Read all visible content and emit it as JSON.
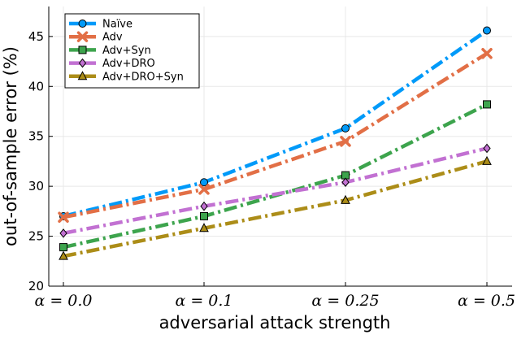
{
  "chart_data": {
    "type": "line",
    "xlabel": "adversarial attack strength",
    "ylabel": "out-of-sample error (%)",
    "categories": [
      "α = 0.0",
      "α = 0.1",
      "α = 0.25",
      "α = 0.5"
    ],
    "x": [
      0.0,
      0.1,
      0.25,
      0.5
    ],
    "ylim": [
      20,
      48
    ],
    "yticks": [
      "20",
      "25",
      "30",
      "35",
      "40",
      "45"
    ],
    "grid": true,
    "legend_position": "top-left",
    "series": [
      {
        "name": "Naïve",
        "values": [
          27.0,
          30.4,
          35.8,
          45.6
        ],
        "color": "#009af9",
        "marker": "circle"
      },
      {
        "name": "Adv",
        "values": [
          26.9,
          29.7,
          34.5,
          43.3
        ],
        "color": "#e26f46",
        "marker": "x"
      },
      {
        "name": "Adv+Syn",
        "values": [
          23.9,
          27.0,
          31.1,
          38.2
        ],
        "color": "#3da44d",
        "marker": "square"
      },
      {
        "name": "Adv+DRO",
        "values": [
          25.3,
          28.0,
          30.4,
          33.8
        ],
        "color": "#c271d2",
        "marker": "diamond"
      },
      {
        "name": "Adv+DRO+Syn",
        "values": [
          23.0,
          25.8,
          28.6,
          32.5
        ],
        "color": "#ac8d18",
        "marker": "triangle"
      }
    ]
  }
}
